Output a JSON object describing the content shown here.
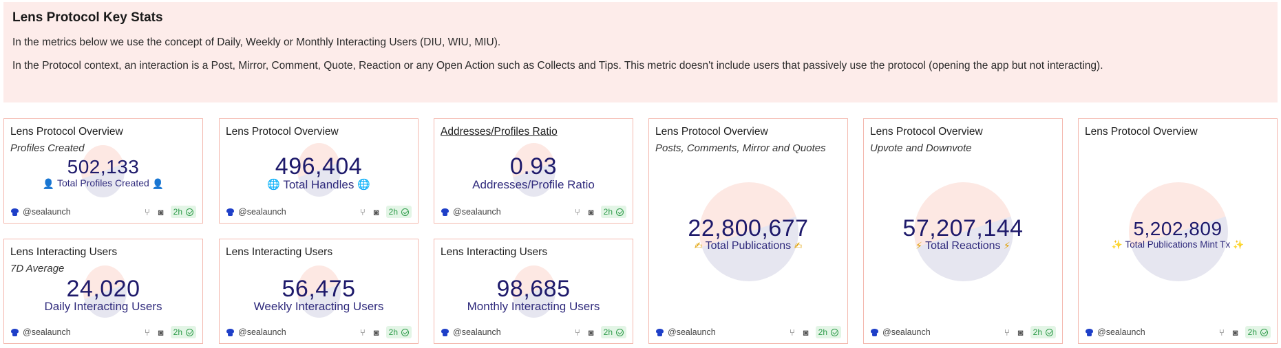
{
  "banner": {
    "title": "Lens Protocol Key Stats",
    "p1": "In the metrics below we use the concept of Daily, Weekly or Monthly Interacting Users (DIU, WIU, MIU).",
    "p2": "In the Protocol context, an interaction is a Post, Mirror, Comment, Quote, Reaction or any Open Action such as Collects and Tips. This metric doesn't include users that passively use the protocol (opening the app but not interacting)."
  },
  "footer": {
    "author": "@sealaunch",
    "refresh": "2h",
    "fork_icon": "fork-icon",
    "screenshot_icon": "camera-icon",
    "check_icon": "check-circle-icon"
  },
  "colors": {
    "pie_a": "#fde8e3",
    "pie_b": "#e6e6f0",
    "value": "#1e1a6b",
    "border": "#f4b8ae",
    "banner_bg": "#fdecea",
    "badge_bg": "#e3f5e6",
    "badge_fg": "#2e9c4a"
  },
  "cards": {
    "profiles": {
      "title": "Lens Protocol Overview",
      "subtitle": "Profiles Created",
      "value": "502,133",
      "label": "Total Profiles Created",
      "emoji": "👤",
      "icon": "bust-icon"
    },
    "handles": {
      "title": "Lens Protocol Overview",
      "value": "496,404",
      "label": "Total Handles",
      "emoji": "🌐",
      "icon": "globe-icon"
    },
    "ratio": {
      "title": "Addresses/Profiles Ratio",
      "value": "0.93",
      "label": "Addresses/Profile Ratio"
    },
    "publications": {
      "title": "Lens Protocol Overview",
      "subtitle": "Posts, Comments, Mirror and Quotes",
      "value": "22,800,677",
      "label": "Total Publications",
      "emoji": "✍",
      "icon": "writing-hand-icon"
    },
    "reactions": {
      "title": "Lens Protocol Overview",
      "subtitle": "Upvote and Downvote",
      "value": "57,207,144",
      "label": "Total Reactions",
      "emoji": "⚡",
      "icon": "lightning-icon"
    },
    "mints": {
      "title": "Lens Protocol Overview",
      "value": "5,202,809",
      "label": "Total Publications Mint Tx",
      "emoji": "✨",
      "icon": "sparkles-icon"
    },
    "diu": {
      "title": "Lens Interacting Users",
      "subtitle": "7D Average",
      "value": "24,020",
      "label": "Daily Interacting Users"
    },
    "wiu": {
      "title": "Lens Interacting Users",
      "value": "56,475",
      "label": "Weekly Interacting Users"
    },
    "miu": {
      "title": "Lens Interacting Users",
      "value": "98,685",
      "label": "Monthly Interacting Users"
    }
  }
}
